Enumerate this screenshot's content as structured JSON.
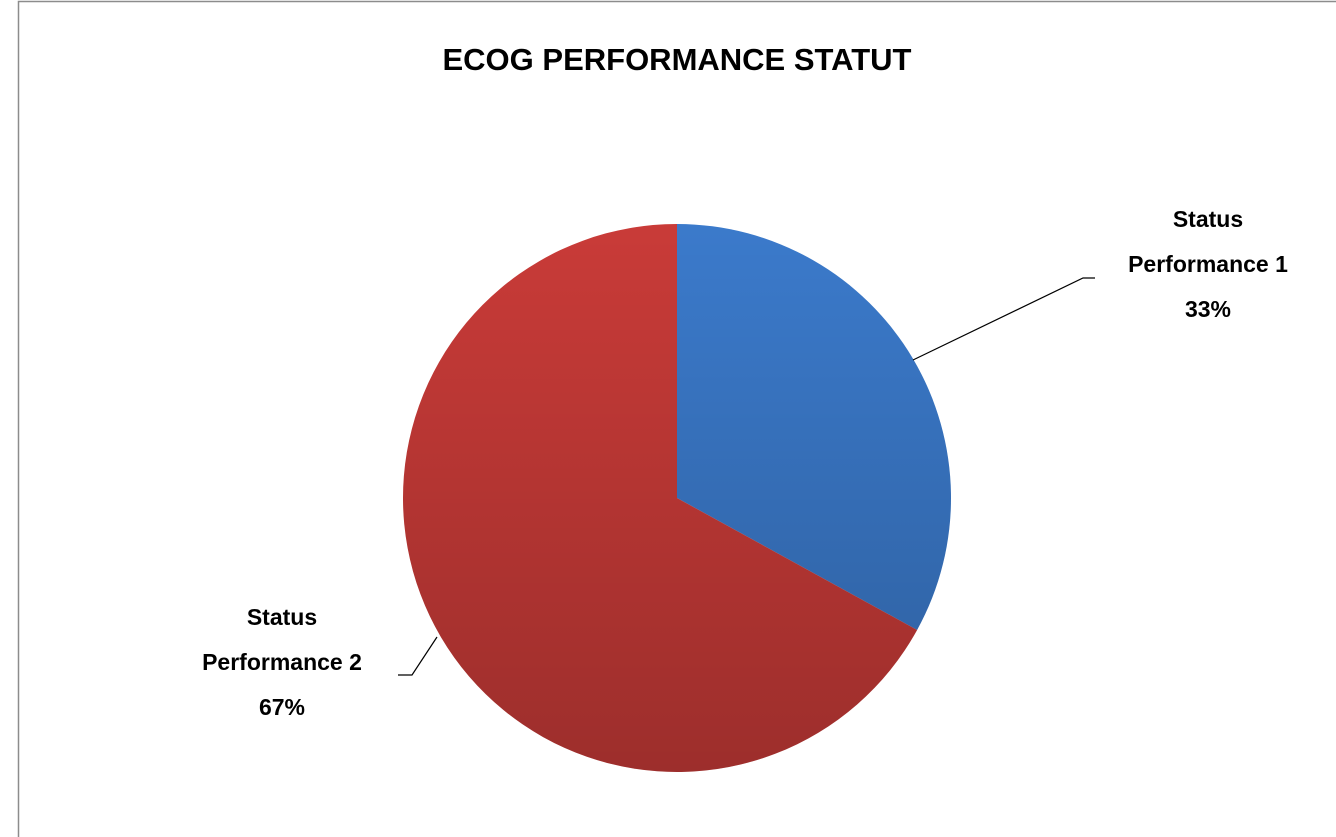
{
  "chart_data": {
    "type": "pie",
    "title": "ECOG PERFORMANCE STATUT",
    "categories": [
      "Status Performance 1",
      "Status Performance 2"
    ],
    "values": [
      33,
      67
    ],
    "value_labels": [
      "33%",
      "67%"
    ],
    "colors": [
      "#3b7acb",
      "#c93b38"
    ]
  }
}
